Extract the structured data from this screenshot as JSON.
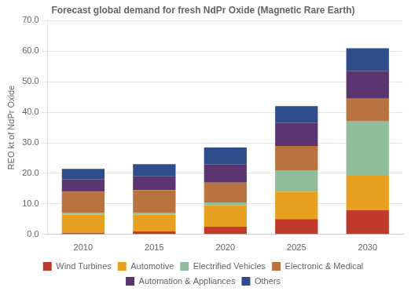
{
  "chart_data": {
    "type": "bar",
    "title": "Forecast global demand for fresh NdPr Oxide (Magnetic Rare Earth)",
    "y_label": "REO kt of NdPr Oxide",
    "categories": [
      "2010",
      "2015",
      "2020",
      "2025",
      "2030"
    ],
    "series": [
      {
        "name": "Wind Turbines",
        "color": "#c0392b",
        "values": [
          0.5,
          1.0,
          2.5,
          5.0,
          8.0
        ]
      },
      {
        "name": "Automotive",
        "color": "#e8a020",
        "values": [
          6.0,
          5.5,
          7.0,
          9.0,
          11.5
        ]
      },
      {
        "name": "Electrified Vehicles",
        "color": "#8fbc9a",
        "values": [
          0.5,
          0.5,
          1.0,
          7.0,
          17.5
        ]
      },
      {
        "name": "Electronic & Medical",
        "color": "#b87340",
        "values": [
          7.0,
          7.5,
          6.5,
          8.0,
          7.5
        ]
      },
      {
        "name": "Automation & Appliances",
        "color": "#5b3570",
        "values": [
          4.0,
          4.5,
          6.0,
          7.5,
          9.0
        ]
      },
      {
        "name": "Others",
        "color": "#2e4d8a",
        "values": [
          3.5,
          4.0,
          5.5,
          5.5,
          7.5
        ]
      }
    ],
    "stacked": true,
    "ylim": [
      0,
      70
    ],
    "yticks": [
      {
        "value": 0,
        "label": "0.0"
      },
      {
        "value": 10,
        "label": "10.0"
      },
      {
        "value": 20,
        "label": "20.0"
      },
      {
        "value": 30,
        "label": "30.0"
      },
      {
        "value": 40,
        "label": "40.0"
      },
      {
        "value": 50,
        "label": "50.0"
      },
      {
        "value": 60,
        "label": "60.0"
      },
      {
        "value": 70,
        "label": "70.0"
      }
    ],
    "grid": true,
    "legend": "bottom"
  }
}
